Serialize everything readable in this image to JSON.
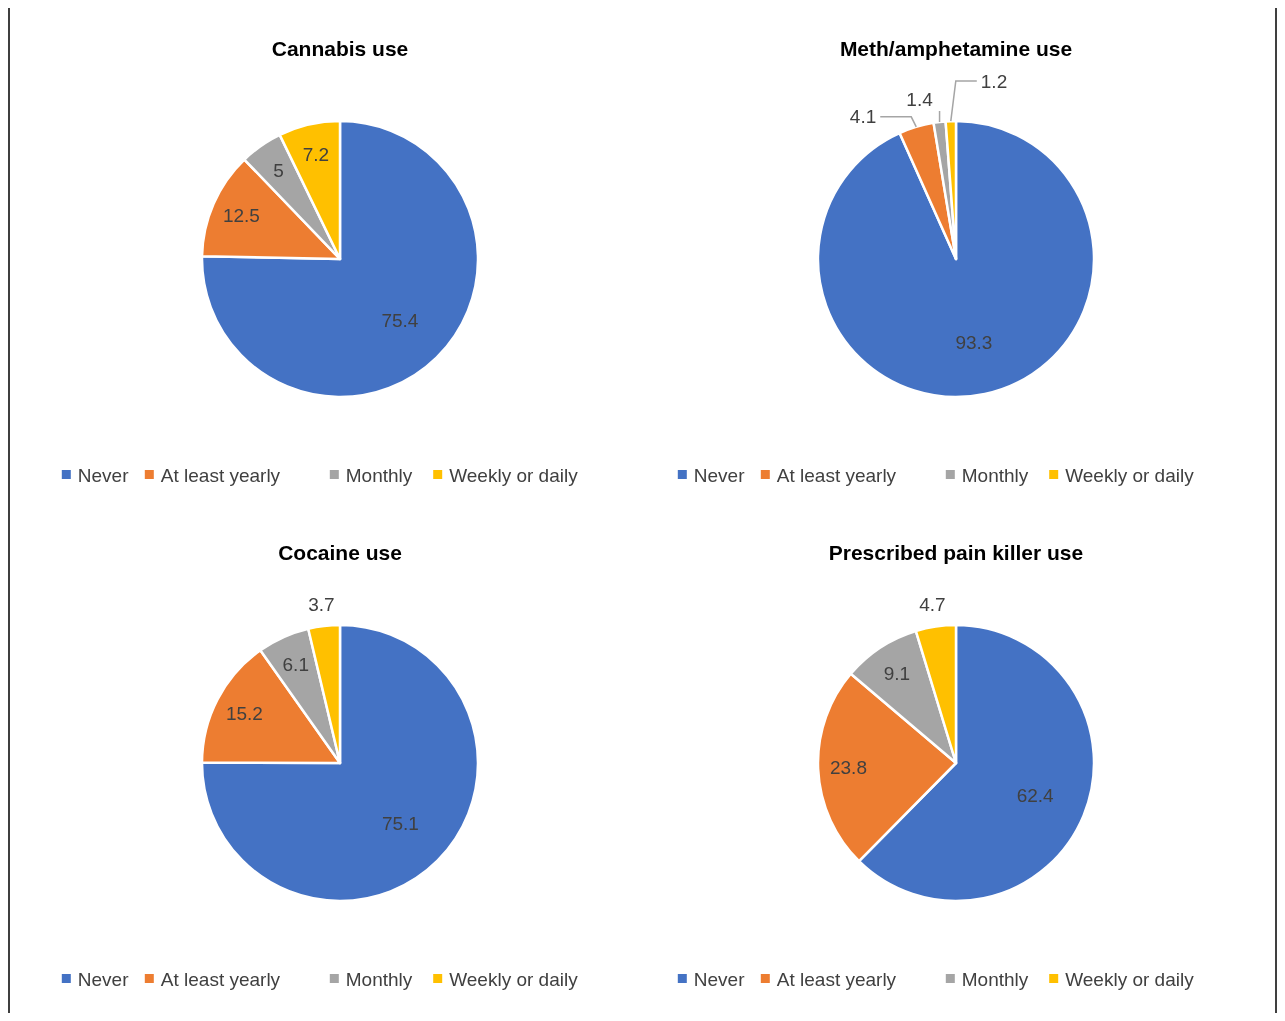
{
  "chart_data": [
    {
      "type": "pie",
      "title": "Cannabis use",
      "categories": [
        "Never",
        "At least yearly",
        "Monthly",
        "Weekly or daily"
      ],
      "values": [
        75.4,
        12.5,
        5,
        7.2
      ],
      "colors": [
        "#4472c4",
        "#ed7d31",
        "#a5a5a5",
        "#ffc000"
      ],
      "data_labels": true,
      "legend": "bottom"
    },
    {
      "type": "pie",
      "title": "Meth/amphetamine use",
      "categories": [
        "Never",
        "At least yearly",
        "Monthly",
        "Weekly or daily"
      ],
      "values": [
        93.3,
        4.1,
        1.4,
        1.2
      ],
      "colors": [
        "#4472c4",
        "#ed7d31",
        "#a5a5a5",
        "#ffc000"
      ],
      "data_labels": true,
      "legend": "bottom"
    },
    {
      "type": "pie",
      "title": "Cocaine use",
      "categories": [
        "Never",
        "At least yearly",
        "Monthly",
        "Weekly or daily"
      ],
      "values": [
        75.1,
        15.2,
        6.1,
        3.7
      ],
      "colors": [
        "#4472c4",
        "#ed7d31",
        "#a5a5a5",
        "#ffc000"
      ],
      "data_labels": true,
      "legend": "bottom"
    },
    {
      "type": "pie",
      "title": "Prescribed pain killer use",
      "categories": [
        "Never",
        "At least yearly",
        "Monthly",
        "Weekly or daily"
      ],
      "values": [
        62.4,
        23.8,
        9.1,
        4.7
      ],
      "colors": [
        "#4472c4",
        "#ed7d31",
        "#a5a5a5",
        "#ffc000"
      ],
      "data_labels": true,
      "legend": "bottom"
    }
  ]
}
